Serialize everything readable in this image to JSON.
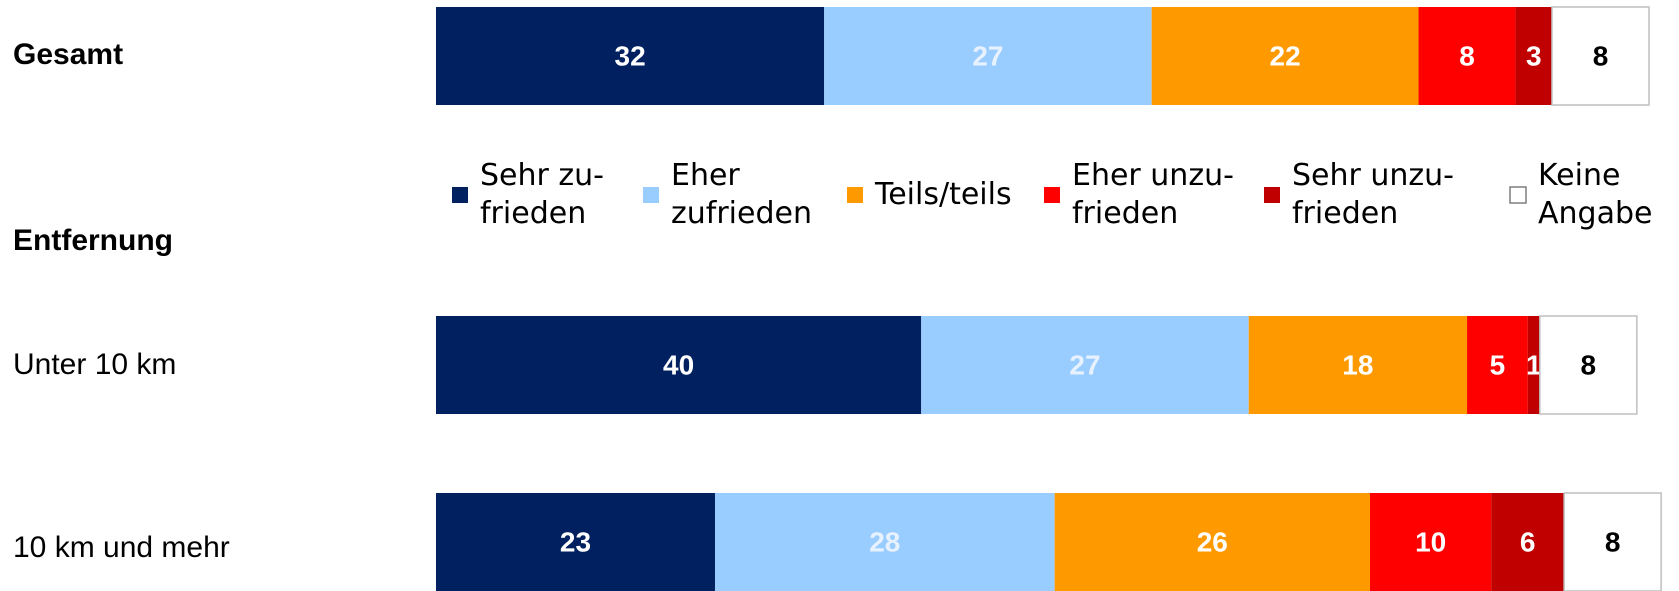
{
  "chart_data": {
    "type": "stacked_bar_horizontal",
    "categories": [
      "Gesamt",
      "Unter 10 km",
      "10 km und mehr"
    ],
    "group_label": "Entfernung",
    "xlim": [
      0,
      100
    ],
    "series": [
      {
        "name": "Sehr zu-\nfrieden",
        "color": "#002060",
        "label_color": "#ffffff",
        "values": [
          32,
          40,
          23
        ]
      },
      {
        "name": "Eher\nzufrieden",
        "color": "#99ccff",
        "label_color": "#e8f2ff",
        "values": [
          27,
          27,
          28
        ]
      },
      {
        "name": "Teils/teils",
        "color": "#ff9900",
        "label_color": "#ffffff",
        "values": [
          22,
          18,
          26
        ]
      },
      {
        "name": "Eher unzu-\nfrieden",
        "color": "#ff0000",
        "label_color": "#ffffff",
        "values": [
          8,
          5,
          10
        ]
      },
      {
        "name": "Sehr unzu-\nfrieden",
        "color": "#c00000",
        "label_color": "#ffffff",
        "values": [
          3,
          1,
          6
        ]
      },
      {
        "name": "Keine\nAngabe",
        "color": "#ffffff",
        "label_color": "#000000",
        "values": [
          8,
          8,
          8
        ]
      }
    ]
  }
}
